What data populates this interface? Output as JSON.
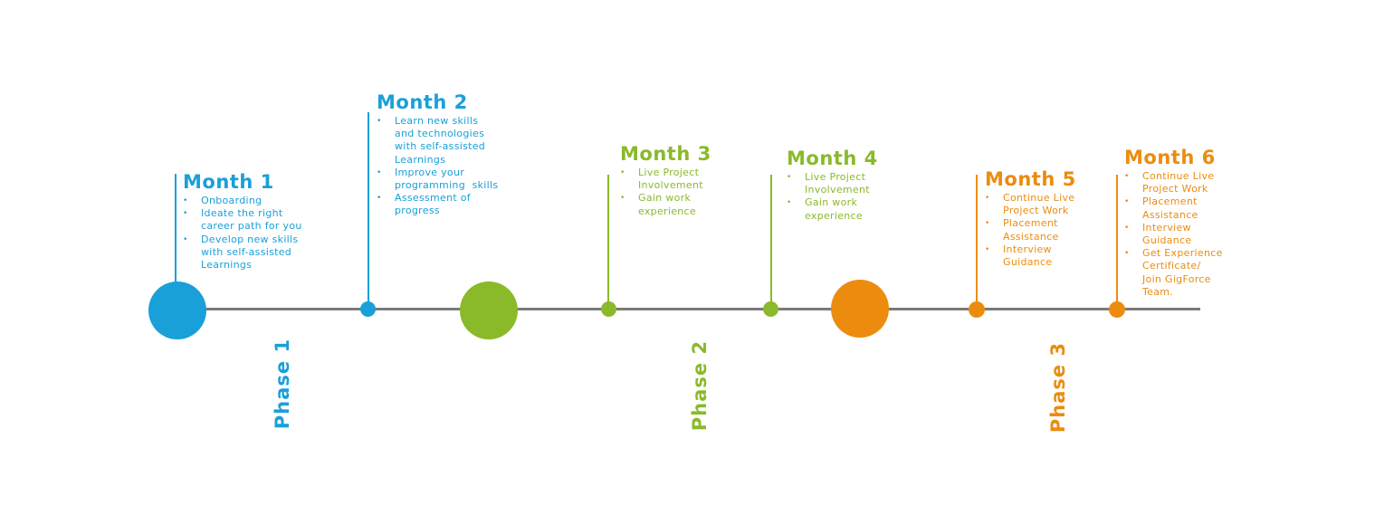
{
  "colors": {
    "phase1": "#1aa0d8",
    "phase2": "#8aba2a",
    "phase3": "#ec8c0f",
    "axis": "#7a7a7a"
  },
  "months": [
    {
      "title": "Month 1",
      "bullets": [
        "Onboarding",
        "Ideate the right\ncareer path for you",
        "Develop new skills\nwith self-assisted\nLearnings"
      ]
    },
    {
      "title": "Month 2",
      "bullets": [
        "Learn new skills\nand technologies\nwith self-assisted\nLearnings",
        "Improve your\nprogramming  skills",
        "Assessment of\nprogress"
      ]
    },
    {
      "title": "Month 3",
      "bullets": [
        "Live Project\nInvolvement",
        "Gain work\nexperience"
      ]
    },
    {
      "title": "Month 4",
      "bullets": [
        "Live Project\nInvolvement",
        "Gain work\nexperience"
      ]
    },
    {
      "title": "Month 5",
      "bullets": [
        "Continue Live\nProject Work",
        "Placement\nAssistance",
        "Interview\nGuidance"
      ]
    },
    {
      "title": "Month 6",
      "bullets": [
        "Continue Live\nProject Work",
        "Placement\nAssistance",
        "Interview\nGuidance",
        "Get Experience\nCertificate/\nJoin GigForce\nTeam."
      ]
    }
  ],
  "phases": [
    "Phase 1",
    "Phase 2",
    "Phase 3"
  ]
}
